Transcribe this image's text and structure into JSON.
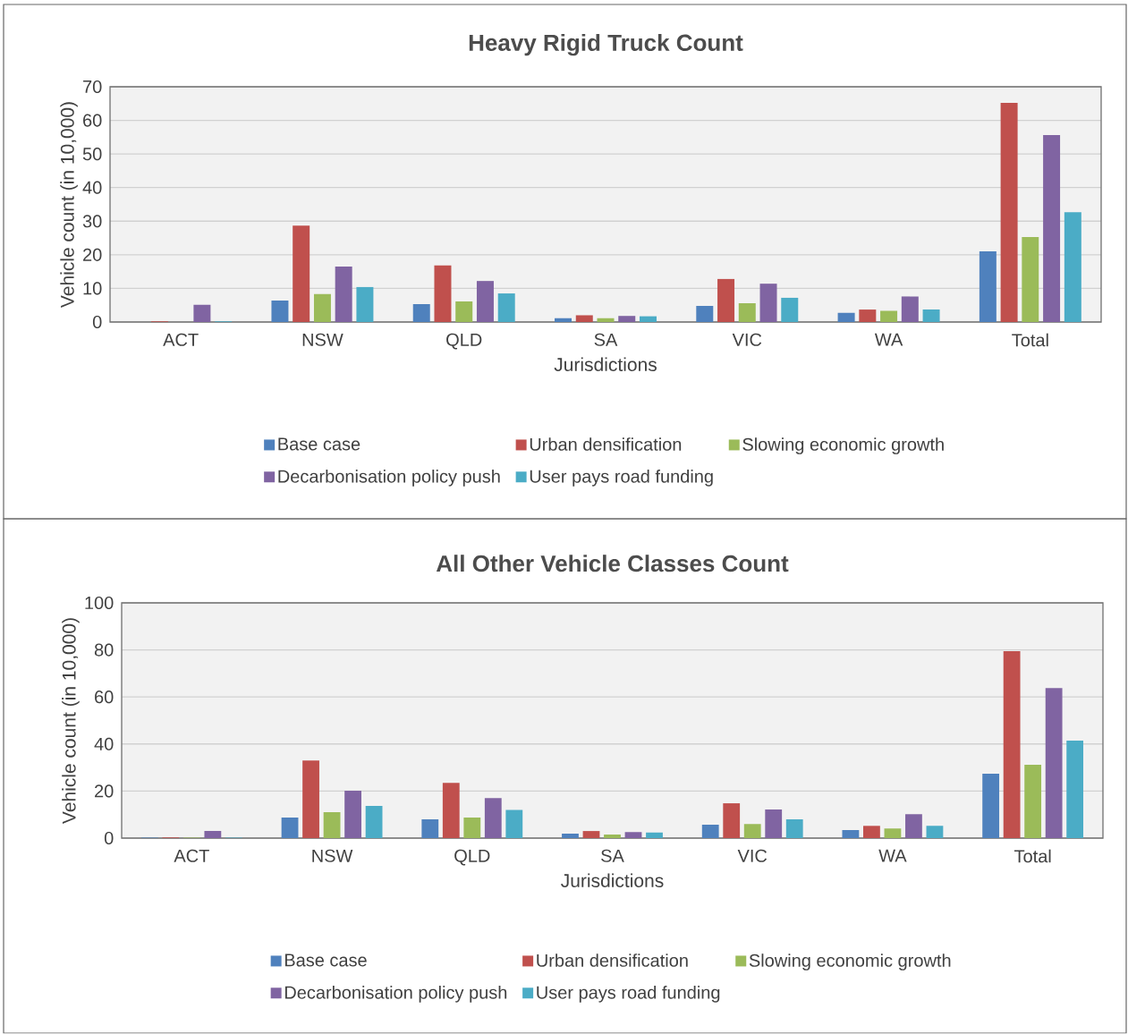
{
  "chart_data": [
    {
      "type": "bar",
      "title": "Heavy Rigid Truck Count",
      "xlabel": "Jurisdictions",
      "ylabel": "Vehicle count (in 10,000)",
      "categories": [
        "ACT",
        "NSW",
        "QLD",
        "SA",
        "VIC",
        "WA",
        "Total"
      ],
      "ylim": [
        0,
        70
      ],
      "yticks": [
        0,
        10,
        20,
        30,
        40,
        50,
        60,
        70
      ],
      "grid": "y",
      "legend": "bottom",
      "series": [
        {
          "name": "Base case",
          "color": "#4f81bd",
          "values": [
            null,
            6.4,
            5.3,
            1.1,
            4.8,
            2.7,
            21.0
          ]
        },
        {
          "name": "Urban densification",
          "color": "#c0504d",
          "values": [
            0.2,
            28.7,
            16.8,
            2.0,
            12.8,
            3.7,
            65.2
          ]
        },
        {
          "name": "Slowing economic growth",
          "color": "#9bbb59",
          "values": [
            null,
            8.3,
            6.1,
            1.1,
            5.6,
            3.3,
            25.3
          ]
        },
        {
          "name": "Decarbonisation policy push",
          "color": "#8064a2",
          "values": [
            5.1,
            16.5,
            12.2,
            1.8,
            11.4,
            7.6,
            55.6
          ]
        },
        {
          "name": "User pays road funding",
          "color": "#4bacc6",
          "values": [
            0.2,
            10.4,
            8.5,
            1.7,
            7.2,
            3.7,
            32.7
          ]
        }
      ]
    },
    {
      "type": "bar",
      "title": "All Other Vehicle Classes Count",
      "xlabel": "Jurisdictions",
      "ylabel": "Vehicle count (in 10,000)",
      "categories": [
        "ACT",
        "NSW",
        "QLD",
        "SA",
        "VIC",
        "WA",
        "Total"
      ],
      "ylim": [
        0,
        100
      ],
      "yticks": [
        0,
        20,
        40,
        60,
        80,
        100
      ],
      "grid": "y",
      "legend": "bottom",
      "series": [
        {
          "name": "Base case",
          "color": "#4f81bd",
          "values": [
            0.2,
            8.7,
            8.0,
            1.9,
            5.7,
            3.4,
            27.4
          ]
        },
        {
          "name": "Urban densification",
          "color": "#c0504d",
          "values": [
            0.3,
            33.0,
            23.5,
            3.0,
            14.8,
            5.2,
            79.5
          ]
        },
        {
          "name": "Slowing economic growth",
          "color": "#9bbb59",
          "values": [
            0.2,
            11.0,
            8.7,
            1.5,
            6.0,
            4.1,
            31.2
          ]
        },
        {
          "name": "Decarbonisation policy push",
          "color": "#8064a2",
          "values": [
            3.0,
            20.1,
            17.0,
            2.6,
            12.2,
            10.2,
            63.8
          ]
        },
        {
          "name": "User pays road funding",
          "color": "#4bacc6",
          "values": [
            0.2,
            13.7,
            12.0,
            2.4,
            8.0,
            5.2,
            41.4
          ]
        }
      ]
    }
  ]
}
